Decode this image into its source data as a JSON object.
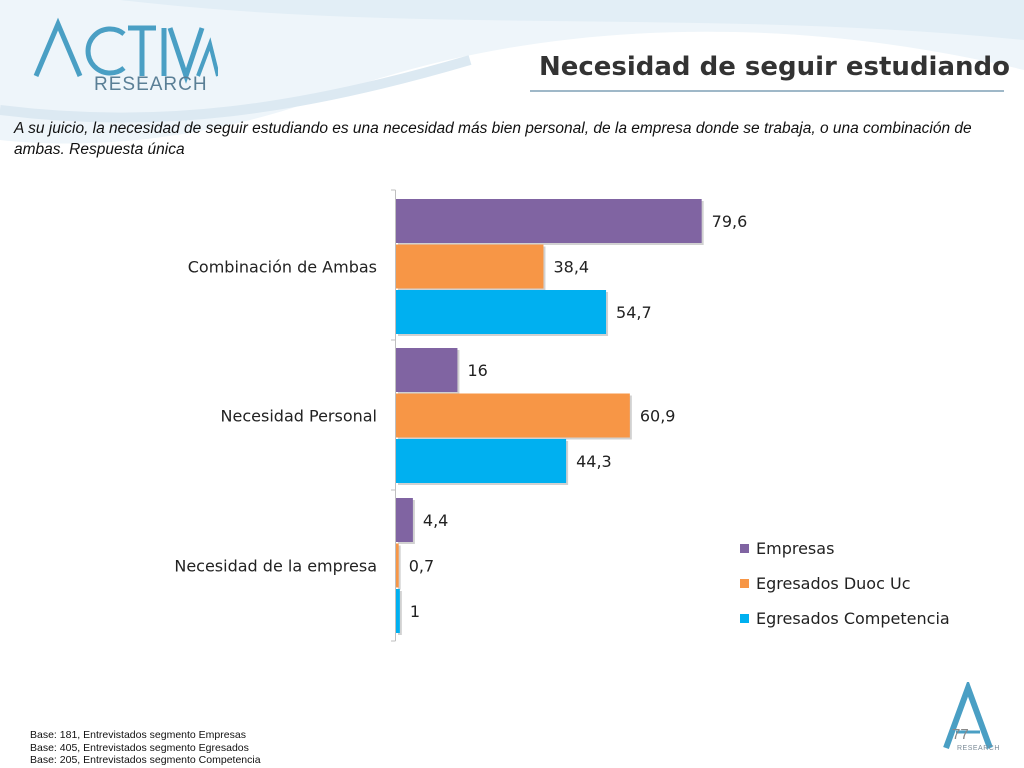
{
  "logo": {
    "word": "ACTIVA",
    "sub": "RESEARCH"
  },
  "title": "Necesidad de seguir estudiando",
  "question": "A su juicio, la necesidad de seguir estudiando  es una necesidad más bien personal, de la empresa donde se trabaja, o una combinación de ambas. Respuesta única",
  "chart_data": {
    "type": "bar",
    "orientation": "horizontal",
    "categories": [
      "Combinación de Ambas",
      "Necesidad Personal",
      "Necesidad de la empresa"
    ],
    "series": [
      {
        "name": "Empresas",
        "values": [
          79.6,
          16,
          4.4
        ],
        "labels": [
          "79,6",
          "16",
          "4,4"
        ],
        "color": "#8064a2"
      },
      {
        "name": "Egresados Duoc Uc",
        "values": [
          38.4,
          60.9,
          0.7
        ],
        "labels": [
          "38,4",
          "60,9",
          "0,7"
        ],
        "color": "#f79646"
      },
      {
        "name": "Egresados Competencia",
        "values": [
          54.7,
          44.3,
          1
        ],
        "labels": [
          "54,7",
          "44,3",
          "1"
        ],
        "color": "#00b0f0"
      }
    ],
    "xlim": [
      0,
      100
    ],
    "grid": false,
    "legend": "right"
  },
  "footnotes": [
    "Base: 181, Entrevistados segmento Empresas",
    "Base: 405, Entrevistados segmento Egresados",
    "Base: 205, Entrevistados segmento Competencia"
  ],
  "page_number": "77",
  "corner_logo_sub": "RESEARCH",
  "colors": {
    "title": "#333333",
    "logo": "#4a9fc4",
    "swoosh": "#dbe9f2"
  }
}
